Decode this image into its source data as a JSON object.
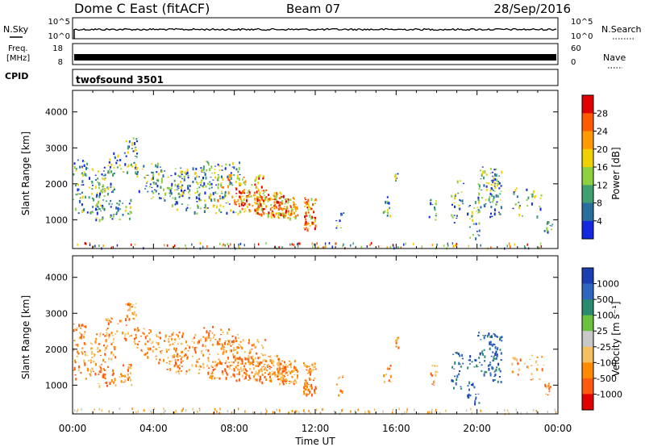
{
  "header": {
    "station": "Dome C East (fitACF)",
    "beam": "Beam 07",
    "date": "28/Sep/2016"
  },
  "top_panels": {
    "nsky_label": "N.Sky",
    "nsky_ticks": [
      "10^5",
      "10^0"
    ],
    "nsearch_label": "N.Search",
    "nsearch_ticks": [
      "10^5",
      "10^0"
    ],
    "freq_label": "Freq.",
    "freq_unit": "[MHz]",
    "freq_ticks": [
      "18",
      "8"
    ],
    "nave_label": "Nave",
    "nave_ticks": [
      "60",
      "0"
    ],
    "cpid_label": "CPID",
    "cpid_value": "twofsound 3501"
  },
  "chart_data": [
    {
      "type": "heatmap",
      "name": "power-panel",
      "ylabel": "Slant Range [km]",
      "yticks": [
        "4000",
        "3000",
        "2000",
        "1000"
      ],
      "ylim": [
        200,
        4600
      ],
      "xlim": [
        0,
        24
      ],
      "colorbar_label": "Power [dB]",
      "colorbar_ticks": [
        "28",
        "24",
        "20",
        "16",
        "12",
        "8",
        "4"
      ],
      "colorbar_colors": [
        "#e00000",
        "#ff5a00",
        "#ff9a00",
        "#f0d000",
        "#8fd040",
        "#40a070",
        "#2a6ea0",
        "#1428e0"
      ]
    },
    {
      "type": "heatmap",
      "name": "velocity-panel",
      "ylabel": "Slant Range [km]",
      "yticks": [
        "4000",
        "3000",
        "2000",
        "1000"
      ],
      "ylim": [
        200,
        4600
      ],
      "xlim": [
        0,
        24
      ],
      "colorbar_label": "Velocity [m s⁻¹]",
      "colorbar_ticks": [
        "1000",
        "500",
        "100",
        "25",
        "-25",
        "-100",
        "-500",
        "-1000"
      ],
      "colorbar_colors": [
        "#1a3fb0",
        "#2f66c0",
        "#2a8a70",
        "#6cc040",
        "#c8c8c8",
        "#f5c060",
        "#ff8a00",
        "#ff5a10",
        "#e00000"
      ]
    }
  ],
  "x_axis": {
    "ticks": [
      "00:00",
      "04:00",
      "08:00",
      "12:00",
      "16:00",
      "20:00",
      "00:00"
    ],
    "label": "Time UT"
  }
}
